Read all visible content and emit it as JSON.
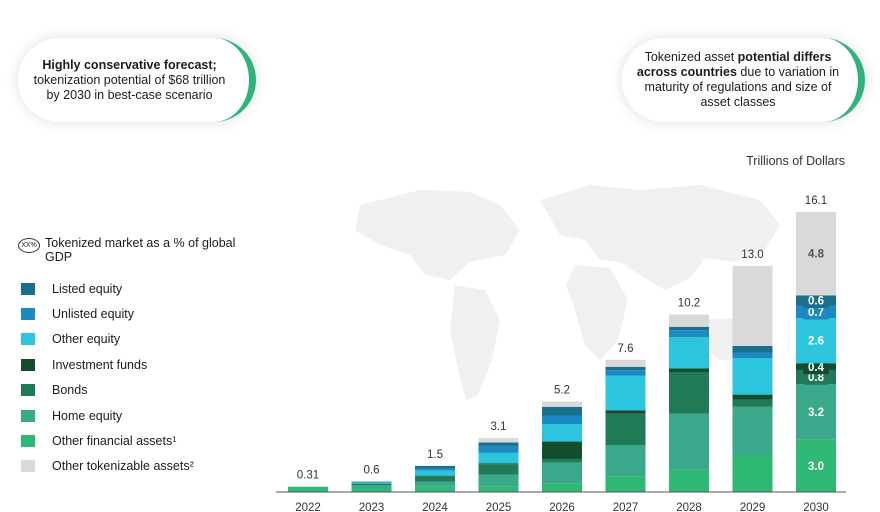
{
  "callout_left": {
    "bold": "Highly conservative forecast;",
    "text": "tokenization potential of $68 trillion by 2030 in best-case scenario"
  },
  "callout_right": {
    "text1": "Tokenized asset ",
    "bold": "potential differs across countries",
    "text2": " due to variation in maturity of regulations and size of asset classes"
  },
  "units_label": "Trillions of Dollars",
  "legend": {
    "pct_icon": "XX%",
    "pct_label": "Tokenized market as a % of global GDP",
    "items": [
      {
        "label": "Listed equity",
        "color": "#1a6f8c"
      },
      {
        "label": "Unlisted equity",
        "color": "#1b8ac2"
      },
      {
        "label": "Other equity",
        "color": "#2cc5de"
      },
      {
        "label": "Investment funds",
        "color": "#124d2e"
      },
      {
        "label": "Bonds",
        "color": "#1f7a55"
      },
      {
        "label": "Home equity",
        "color": "#3aa88a"
      },
      {
        "label": "Other financial assets¹",
        "color": "#2fb873"
      },
      {
        "label": "Other tokenizable assets²",
        "color": "#d9d9d9"
      }
    ]
  },
  "chart_data": {
    "type": "bar",
    "stacked": true,
    "categories": [
      "2022",
      "2023",
      "2024",
      "2025",
      "2026",
      "2027",
      "2028",
      "2029",
      "2030"
    ],
    "totals": [
      "0.31",
      "0.6",
      "1.5",
      "3.1",
      "5.2",
      "7.6",
      "10.2",
      "13.0",
      "16.1"
    ],
    "total_values": [
      0.31,
      0.6,
      1.5,
      3.1,
      5.2,
      7.6,
      10.2,
      13.0,
      16.1
    ],
    "series": [
      {
        "name": "Other financial assets¹",
        "color": "#2fb873",
        "values": [
          0.3,
          0.2,
          0.3,
          0.3,
          0.5,
          0.9,
          1.3,
          2.1,
          3.0
        ]
      },
      {
        "name": "Home equity",
        "color": "#3aa88a",
        "values": [
          0.01,
          0.2,
          0.3,
          0.7,
          1.2,
          1.8,
          3.2,
          2.8,
          3.2
        ]
      },
      {
        "name": "Bonds",
        "color": "#1f7a55",
        "values": [
          0.0,
          0.08,
          0.3,
          0.6,
          0.2,
          1.8,
          2.4,
          0.4,
          0.8
        ]
      },
      {
        "name": "Investment funds",
        "color": "#124d2e",
        "values": [
          0.0,
          0.0,
          0.04,
          0.05,
          1.0,
          0.2,
          0.2,
          0.3,
          0.4
        ]
      },
      {
        "name": "Other equity",
        "color": "#2cc5de",
        "values": [
          0.0,
          0.07,
          0.3,
          0.6,
          1.0,
          2.0,
          1.8,
          2.1,
          2.6
        ]
      },
      {
        "name": "Unlisted equity",
        "color": "#1b8ac2",
        "values": [
          0.0,
          0.03,
          0.1,
          0.4,
          0.5,
          0.3,
          0.4,
          0.3,
          0.7
        ]
      },
      {
        "name": "Listed equity",
        "color": "#1a6f8c",
        "values": [
          0.0,
          0.02,
          0.16,
          0.2,
          0.5,
          0.2,
          0.2,
          0.4,
          0.6
        ]
      },
      {
        "name": "Other tokenizable assets²",
        "color": "#d9d9d9",
        "values": [
          0.0,
          0.0,
          0.0,
          0.25,
          0.3,
          0.4,
          0.7,
          4.6,
          4.8
        ]
      }
    ],
    "segment_labels_2030": [
      {
        "series": "Other financial assets¹",
        "label": "3.0",
        "color": "#ffffff"
      },
      {
        "series": "Home equity",
        "label": "3.2",
        "color": "#ffffff"
      },
      {
        "series": "Bonds",
        "label": "0.8",
        "color": "#ffffff"
      },
      {
        "series": "Investment funds",
        "label": "0.4",
        "color": "#ffffff"
      },
      {
        "series": "Other equity",
        "label": "2.6",
        "color": "#ffffff"
      },
      {
        "series": "Unlisted equity",
        "label": "0.7",
        "color": "#ffffff"
      },
      {
        "series": "Listed equity",
        "label": "0.6",
        "color": "#ffffff"
      },
      {
        "series": "Other tokenizable assets²",
        "label": "4.8",
        "color": "#555555"
      }
    ],
    "ylim": [
      0,
      16.1
    ]
  }
}
